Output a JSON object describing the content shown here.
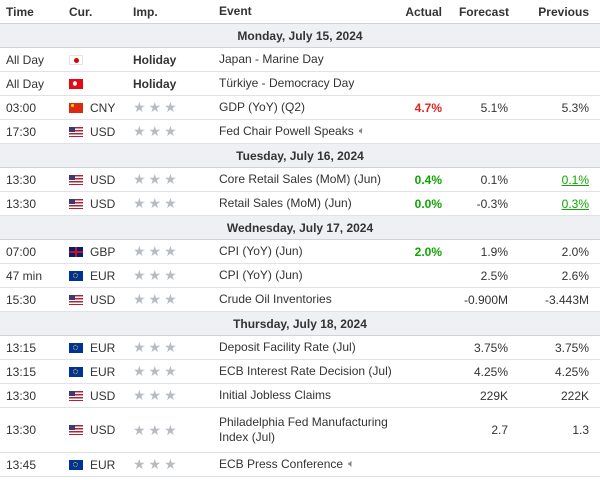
{
  "header": {
    "time": "Time",
    "cur": "Cur.",
    "imp": "Imp.",
    "event": "Event",
    "actual": "Actual",
    "forecast": "Forecast",
    "previous": "Previous"
  },
  "sections": [
    {
      "date": "Monday, July 15, 2024",
      "rows": [
        {
          "time": "All Day",
          "flag": "jp",
          "cur": "",
          "imp": "Holiday",
          "event": "Japan - Marine Day",
          "actual": "",
          "forecast": "",
          "previous": ""
        },
        {
          "time": "All Day",
          "flag": "tr",
          "cur": "",
          "imp": "Holiday",
          "event": "Türkiye - Democracy Day",
          "actual": "",
          "forecast": "",
          "previous": ""
        },
        {
          "time": "03:00",
          "flag": "cn",
          "cur": "CNY",
          "imp": "stars",
          "event": "GDP (YoY) (Q2)",
          "actual": "4.7%",
          "forecast": "5.1%",
          "previous": "5.3%"
        },
        {
          "time": "17:30",
          "flag": "us",
          "cur": "USD",
          "imp": "stars",
          "event": "Fed Chair Powell Speaks",
          "actual": "",
          "forecast": "",
          "previous": ""
        }
      ]
    },
    {
      "date": "Tuesday, July 16, 2024",
      "rows": [
        {
          "time": "13:30",
          "flag": "us",
          "cur": "USD",
          "imp": "stars",
          "event": "Core Retail Sales (MoM) (Jun)",
          "actual": "0.4%",
          "forecast": "0.1%",
          "previous": "0.1%"
        },
        {
          "time": "13:30",
          "flag": "us",
          "cur": "USD",
          "imp": "stars",
          "event": "Retail Sales (MoM) (Jun)",
          "actual": "0.0%",
          "forecast": "-0.3%",
          "previous": "0.3%"
        }
      ]
    },
    {
      "date": "Wednesday, July 17, 2024",
      "rows": [
        {
          "time": "07:00",
          "flag": "gb",
          "cur": "GBP",
          "imp": "stars",
          "event": "CPI (YoY) (Jun)",
          "actual": "2.0%",
          "forecast": "1.9%",
          "previous": "2.0%"
        },
        {
          "time": "47 min",
          "flag": "eu",
          "cur": "EUR",
          "imp": "stars",
          "event": "CPI (YoY) (Jun)",
          "actual": "",
          "forecast": "2.5%",
          "previous": "2.6%"
        },
        {
          "time": "15:30",
          "flag": "us",
          "cur": "USD",
          "imp": "stars",
          "event": "Crude Oil Inventories",
          "actual": "",
          "forecast": "-0.900M",
          "previous": "-3.443M"
        }
      ]
    },
    {
      "date": "Thursday, July 18, 2024",
      "rows": [
        {
          "time": "13:15",
          "flag": "eu",
          "cur": "EUR",
          "imp": "stars",
          "event": "Deposit Facility Rate (Jul)",
          "actual": "",
          "forecast": "3.75%",
          "previous": "3.75%"
        },
        {
          "time": "13:15",
          "flag": "eu",
          "cur": "EUR",
          "imp": "stars",
          "event": "ECB Interest Rate Decision (Jul)",
          "actual": "",
          "forecast": "4.25%",
          "previous": "4.25%"
        },
        {
          "time": "13:30",
          "flag": "us",
          "cur": "USD",
          "imp": "stars",
          "event": "Initial Jobless Claims",
          "actual": "",
          "forecast": "229K",
          "previous": "222K"
        },
        {
          "time": "13:30",
          "flag": "us",
          "cur": "USD",
          "imp": "stars",
          "event": "Philadelphia Fed Manufacturing Index (Jul)",
          "actual": "",
          "forecast": "2.7",
          "previous": "1.3"
        },
        {
          "time": "13:45",
          "flag": "eu",
          "cur": "EUR",
          "imp": "stars",
          "event": "ECB Press Conference",
          "actual": "",
          "forecast": "",
          "previous": ""
        }
      ]
    }
  ],
  "stars": "★★★",
  "colors": {
    "positive": "#0ea600",
    "negative": "#e02424",
    "date_bg": "#eef0f3"
  }
}
